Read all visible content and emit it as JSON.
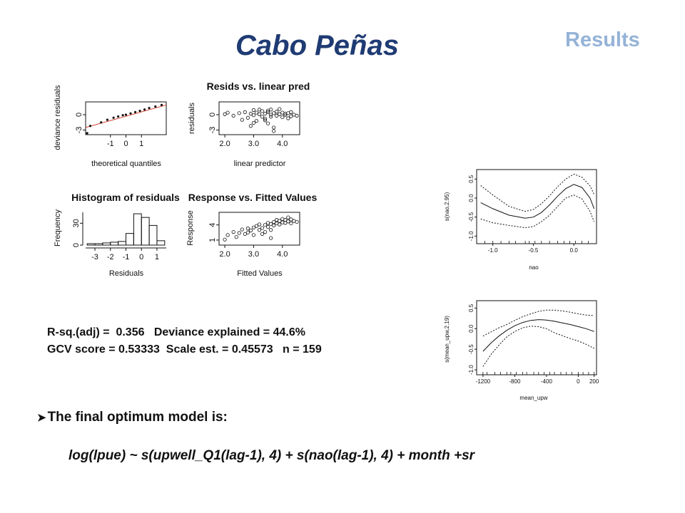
{
  "header": {
    "title": "Cabo Peñas",
    "section": "Results"
  },
  "stats": {
    "line1": "R-sq.(adj) =  0.356   Deviance explained = 44.6%",
    "line2": "GCV score = 0.53333  Scale est. = 0.45573   n = 159"
  },
  "conclusion": {
    "lead": "The final optimum model is:",
    "formula": "log(lpue) ~ s(upwell_Q1(lag-1), 4) + s(nao(lag-1), 4) + month +sr"
  },
  "chart_data": [
    {
      "type": "scatter",
      "id": "qq",
      "title": "",
      "xlabel": "theoretical quantiles",
      "ylabel": "deviance residuals",
      "xlim": [
        -2.6,
        2.6
      ],
      "ylim": [
        -3.9,
        2.5
      ],
      "xticks": [
        -1,
        0,
        1
      ],
      "yticks": [
        -3,
        0
      ],
      "reference_line": [
        [
          -2.6,
          -2.5
        ],
        [
          2.6,
          1.9
        ]
      ],
      "points": [
        [
          -2.5,
          -3.6
        ],
        [
          -2.3,
          -2.2
        ],
        [
          -1.6,
          -1.5
        ],
        [
          -1.2,
          -1.0
        ],
        [
          -0.8,
          -0.6
        ],
        [
          -0.5,
          -0.35
        ],
        [
          -0.2,
          -0.1
        ],
        [
          0.0,
          0.0
        ],
        [
          0.3,
          0.25
        ],
        [
          0.6,
          0.5
        ],
        [
          0.9,
          0.75
        ],
        [
          1.2,
          1.0
        ],
        [
          1.5,
          1.3
        ],
        [
          1.9,
          1.6
        ],
        [
          2.3,
          1.9
        ]
      ]
    },
    {
      "type": "scatter",
      "id": "resid_vs_lp",
      "title": "Resids vs. linear pred",
      "xlabel": "linear predictor",
      "ylabel": "residuals",
      "xlim": [
        1.8,
        4.6
      ],
      "ylim": [
        -3.9,
        2.5
      ],
      "xticks": [
        2.0,
        3.0,
        4.0
      ],
      "xticklabels": [
        "2.0",
        "3.0",
        "4.0"
      ],
      "yticks": [
        -3,
        0
      ],
      "points": [
        [
          2.0,
          0.1
        ],
        [
          2.1,
          0.4
        ],
        [
          2.3,
          -0.2
        ],
        [
          2.5,
          0.3
        ],
        [
          2.7,
          0.5
        ],
        [
          2.8,
          -0.6
        ],
        [
          2.9,
          0.2
        ],
        [
          3.0,
          -0.1
        ],
        [
          3.0,
          0.9
        ],
        [
          3.1,
          -1.2
        ],
        [
          3.1,
          0.4
        ],
        [
          3.2,
          0.1
        ],
        [
          3.3,
          -0.4
        ],
        [
          3.3,
          0.7
        ],
        [
          3.4,
          0.2
        ],
        [
          3.4,
          -0.8
        ],
        [
          3.5,
          0.5
        ],
        [
          3.5,
          -1.7
        ],
        [
          3.6,
          0.0
        ],
        [
          3.6,
          -0.4
        ],
        [
          3.6,
          1.0
        ],
        [
          3.7,
          0.3
        ],
        [
          3.7,
          -3.2
        ],
        [
          3.8,
          0.6
        ],
        [
          3.8,
          -0.2
        ],
        [
          3.9,
          0.1
        ],
        [
          3.9,
          1.1
        ],
        [
          4.0,
          -0.5
        ],
        [
          4.0,
          0.4
        ],
        [
          4.1,
          0.2
        ],
        [
          4.1,
          -0.1
        ],
        [
          4.2,
          0.3
        ],
        [
          4.3,
          -0.3
        ],
        [
          4.3,
          0.5
        ],
        [
          4.4,
          0.0
        ],
        [
          4.5,
          -0.2
        ],
        [
          3.2,
          1.0
        ],
        [
          3.5,
          0.8
        ],
        [
          2.6,
          -1.0
        ],
        [
          3.0,
          -1.6
        ],
        [
          2.9,
          -2.2
        ],
        [
          3.4,
          -1.1
        ],
        [
          3.7,
          -2.5
        ],
        [
          4.2,
          -0.7
        ]
      ]
    },
    {
      "type": "bar",
      "id": "hist",
      "title": "Histogram of residuals",
      "xlabel": "Residuals",
      "ylabel": "Frequency",
      "xlim": [
        -3.6,
        1.6
      ],
      "ylim": [
        0,
        45
      ],
      "xticks": [
        -3,
        -2,
        -1,
        0,
        1
      ],
      "yticks": [
        0,
        30
      ],
      "bins": [
        [
          -3.5,
          -3.0,
          2
        ],
        [
          -3.0,
          -2.5,
          2
        ],
        [
          -2.5,
          -2.0,
          3
        ],
        [
          -2.0,
          -1.5,
          4
        ],
        [
          -1.5,
          -1.0,
          5
        ],
        [
          -1.0,
          -0.5,
          16
        ],
        [
          -0.5,
          0.0,
          43
        ],
        [
          0.0,
          0.5,
          38
        ],
        [
          0.5,
          1.0,
          27
        ],
        [
          1.0,
          1.5,
          6
        ]
      ]
    },
    {
      "type": "scatter",
      "id": "resp_vs_fit",
      "title": "Response vs. Fitted Values",
      "xlabel": "Fitted Values",
      "ylabel": "Response",
      "xlim": [
        1.8,
        4.6
      ],
      "ylim": [
        0,
        6.5
      ],
      "xticks": [
        2.0,
        3.0,
        4.0
      ],
      "xticklabels": [
        "2.0",
        "3.0",
        "4.0"
      ],
      "yticks": [
        1,
        4
      ],
      "points": [
        [
          2.0,
          1.1
        ],
        [
          2.1,
          2.0
        ],
        [
          2.3,
          2.6
        ],
        [
          2.4,
          1.6
        ],
        [
          2.5,
          2.4
        ],
        [
          2.6,
          3.1
        ],
        [
          2.7,
          2.2
        ],
        [
          2.8,
          3.3
        ],
        [
          2.9,
          2.9
        ],
        [
          3.0,
          3.5
        ],
        [
          3.0,
          2.0
        ],
        [
          3.1,
          3.8
        ],
        [
          3.2,
          3.0
        ],
        [
          3.2,
          4.1
        ],
        [
          3.3,
          3.4
        ],
        [
          3.4,
          4.0
        ],
        [
          3.4,
          2.6
        ],
        [
          3.5,
          4.4
        ],
        [
          3.5,
          3.6
        ],
        [
          3.6,
          4.2
        ],
        [
          3.6,
          3.0
        ],
        [
          3.7,
          4.6
        ],
        [
          3.7,
          3.9
        ],
        [
          3.8,
          4.3
        ],
        [
          3.8,
          5.0
        ],
        [
          3.9,
          4.1
        ],
        [
          3.9,
          4.8
        ],
        [
          4.0,
          4.5
        ],
        [
          4.0,
          5.2
        ],
        [
          4.1,
          4.4
        ],
        [
          4.1,
          5.0
        ],
        [
          4.2,
          4.7
        ],
        [
          4.3,
          4.3
        ],
        [
          4.3,
          5.1
        ],
        [
          4.4,
          4.8
        ],
        [
          4.5,
          4.6
        ],
        [
          3.6,
          1.4
        ],
        [
          3.3,
          2.2
        ],
        [
          2.8,
          2.5
        ],
        [
          4.2,
          5.5
        ]
      ]
    },
    {
      "type": "line",
      "id": "s_nao",
      "title": "",
      "xlabel": "nao",
      "ylabel": "s(nao,2.95)",
      "xlim": [
        -1.2,
        0.28
      ],
      "ylim": [
        -1.2,
        0.75
      ],
      "xticks": [
        -1.0,
        -0.5,
        0.0
      ],
      "xticklabels": [
        "-1.0",
        "-0.5",
        "0.0"
      ],
      "yticks": [
        -1.0,
        -0.5,
        0.0,
        0.5
      ],
      "yticklabels": [
        "-1.0",
        "-0.5",
        "0.0",
        "0.5"
      ],
      "series": [
        {
          "style": "solid",
          "x": [
            -1.15,
            -1.0,
            -0.8,
            -0.6,
            -0.5,
            -0.4,
            -0.3,
            -0.2,
            -0.1,
            0.0,
            0.1,
            0.2,
            0.25
          ],
          "y": [
            -0.12,
            -0.28,
            -0.45,
            -0.53,
            -0.5,
            -0.38,
            -0.18,
            0.05,
            0.25,
            0.36,
            0.28,
            0.0,
            -0.28
          ]
        },
        {
          "style": "dashed",
          "x": [
            -1.15,
            -1.0,
            -0.8,
            -0.6,
            -0.5,
            -0.4,
            -0.3,
            -0.2,
            -0.1,
            0.0,
            0.1,
            0.2,
            0.25
          ],
          "y": [
            0.33,
            0.08,
            -0.22,
            -0.35,
            -0.3,
            -0.15,
            0.06,
            0.3,
            0.5,
            0.63,
            0.55,
            0.32,
            0.1
          ]
        },
        {
          "style": "dashed",
          "x": [
            -1.15,
            -1.0,
            -0.8,
            -0.6,
            -0.5,
            -0.4,
            -0.3,
            -0.2,
            -0.1,
            0.0,
            0.1,
            0.2,
            0.25
          ],
          "y": [
            -0.55,
            -0.65,
            -0.72,
            -0.78,
            -0.75,
            -0.62,
            -0.45,
            -0.22,
            0.0,
            0.08,
            -0.02,
            -0.35,
            -0.62
          ]
        }
      ],
      "rug": [
        -1.1,
        -1.0,
        -0.9,
        -0.8,
        -0.72,
        -0.6,
        -0.55,
        -0.48,
        -0.4,
        -0.3,
        -0.2,
        -0.12,
        -0.05,
        0.02,
        0.1,
        0.18
      ]
    },
    {
      "type": "line",
      "id": "s_upw",
      "title": "",
      "xlabel": "mean_upw",
      "ylabel": "s(mean_upw,2.19)",
      "xlim": [
        -1280,
        230
      ],
      "ylim": [
        -1.12,
        0.68
      ],
      "xticks": [
        -1200,
        -800,
        -400,
        0,
        200
      ],
      "xticklabels": [
        "-1200",
        "-800",
        "-400",
        "0",
        "200"
      ],
      "yticks": [
        -1.0,
        -0.5,
        0.0,
        0.5
      ],
      "yticklabels": [
        "-1.0",
        "-0.5",
        "0.0",
        "0.5"
      ],
      "series": [
        {
          "style": "solid",
          "x": [
            -1200,
            -1100,
            -1000,
            -900,
            -800,
            -700,
            -600,
            -500,
            -400,
            -300,
            -200,
            -100,
            0,
            100,
            200
          ],
          "y": [
            -0.55,
            -0.35,
            -0.18,
            -0.04,
            0.07,
            0.15,
            0.2,
            0.22,
            0.21,
            0.18,
            0.14,
            0.1,
            0.05,
            0.0,
            -0.07
          ]
        },
        {
          "style": "dashed",
          "x": [
            -1200,
            -1100,
            -1000,
            -900,
            -800,
            -700,
            -600,
            -500,
            -400,
            -300,
            -200,
            -100,
            0,
            100,
            200
          ],
          "y": [
            -0.18,
            -0.08,
            0.02,
            0.1,
            0.2,
            0.29,
            0.36,
            0.42,
            0.45,
            0.45,
            0.43,
            0.4,
            0.36,
            0.33,
            0.32
          ]
        },
        {
          "style": "dashed",
          "x": [
            -1200,
            -1100,
            -1000,
            -900,
            -800,
            -700,
            -600,
            -500,
            -400,
            -300,
            -200,
            -100,
            0,
            100,
            200
          ],
          "y": [
            -0.92,
            -0.63,
            -0.4,
            -0.2,
            -0.07,
            0.02,
            0.06,
            0.05,
            0.0,
            -0.1,
            -0.17,
            -0.24,
            -0.3,
            -0.38,
            -0.48
          ]
        }
      ],
      "rug": [
        -1200,
        -1150,
        -1050,
        -980,
        -900,
        -850,
        -780,
        -700,
        -650,
        -560,
        -500,
        -430,
        -360,
        -300,
        -220,
        -150,
        -80,
        0,
        60,
        130,
        200
      ]
    }
  ]
}
